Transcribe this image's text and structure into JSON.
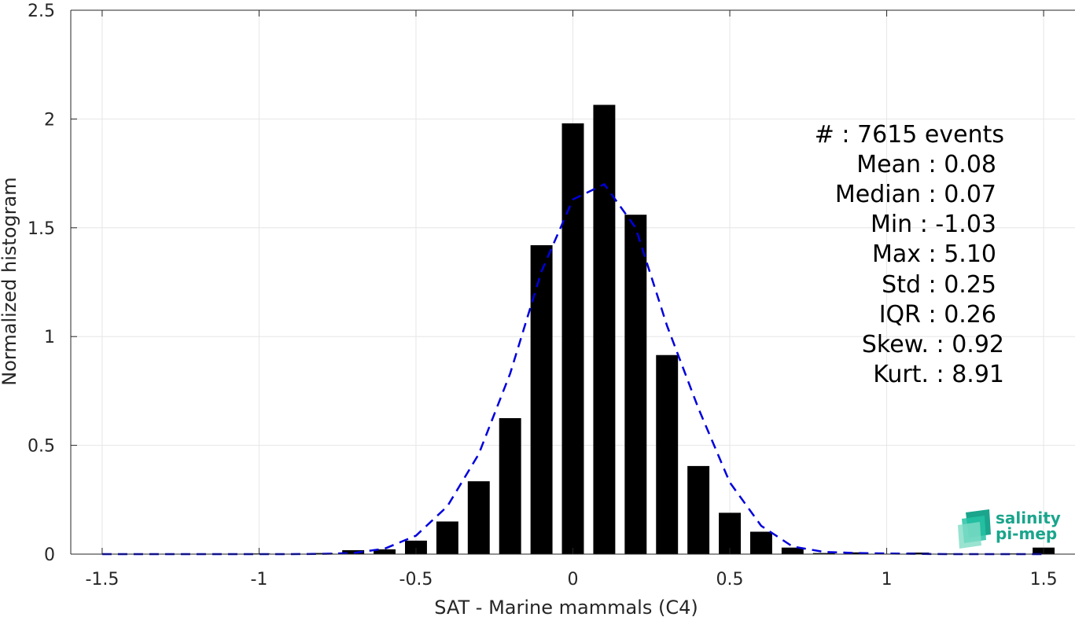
{
  "chart_data": {
    "type": "bar",
    "xlabel": "SAT - Marine mammals (C4)",
    "ylabel": "Normalized histogram",
    "xlim": [
      -1.6,
      1.6
    ],
    "ylim": [
      0,
      2.5
    ],
    "xticks": [
      -1.5,
      -1,
      -0.5,
      0,
      0.5,
      1,
      1.5
    ],
    "xtick_labels": [
      "-1.5",
      "-1",
      "-0.5",
      "0",
      "0.5",
      "1",
      "1.5"
    ],
    "yticks": [
      0,
      0.5,
      1,
      1.5,
      2,
      2.5
    ],
    "ytick_labels": [
      "0",
      "0.5",
      "1",
      "1.5",
      "2",
      "2.5"
    ],
    "grid": true,
    "bar_width": 0.07,
    "bars": {
      "x": [
        -1.5,
        -1.4,
        -1.3,
        -1.2,
        -1.1,
        -1.0,
        -0.9,
        -0.8,
        -0.7,
        -0.6,
        -0.5,
        -0.4,
        -0.3,
        -0.2,
        -0.1,
        0.0,
        0.1,
        0.2,
        0.3,
        0.4,
        0.5,
        0.6,
        0.7,
        0.8,
        0.9,
        1.0,
        1.1,
        1.2,
        1.3,
        1.4,
        1.5
      ],
      "values": [
        0,
        0,
        0,
        0,
        0,
        0.003,
        0,
        0.005,
        0.018,
        0.022,
        0.062,
        0.15,
        0.335,
        0.625,
        1.42,
        1.98,
        2.065,
        1.56,
        0.915,
        0.405,
        0.19,
        0.103,
        0.03,
        0.005,
        0.008,
        0.002,
        0.007,
        0.003,
        0.002,
        0.003,
        0.03
      ],
      "color": "#000000"
    },
    "fit_curve": {
      "style": "dashed",
      "color": "#0000dd",
      "x": [
        -1.5,
        -1.4,
        -1.3,
        -1.2,
        -1.1,
        -1.0,
        -0.9,
        -0.8,
        -0.7,
        -0.6,
        -0.5,
        -0.4,
        -0.3,
        -0.2,
        -0.1,
        0.0,
        0.1,
        0.2,
        0.3,
        0.4,
        0.5,
        0.6,
        0.7,
        0.8,
        0.9,
        1.0,
        1.1,
        1.2,
        1.3,
        1.4,
        1.5
      ],
      "y": [
        0,
        0,
        0,
        0,
        0,
        0,
        0,
        0.001,
        0.005,
        0.025,
        0.085,
        0.22,
        0.46,
        0.83,
        1.3,
        1.63,
        1.7,
        1.5,
        1.05,
        0.67,
        0.33,
        0.13,
        0.035,
        0.01,
        0.005,
        0.003,
        0.001,
        0,
        0,
        0,
        0
      ]
    },
    "annotations": [
      "#  : 7615 events",
      "Mean : 0.08",
      "Median : 0.07",
      "Min : -1.03",
      "Max : 5.10",
      "Std : 0.25",
      "IQR : 0.26",
      "Skew. : 0.92",
      "Kurt. : 8.91"
    ]
  },
  "logo": {
    "line1": "salinity",
    "line2": "pi-mep",
    "colors": [
      "#1aa58c",
      "#27c2a5",
      "#7fdcc5"
    ]
  }
}
